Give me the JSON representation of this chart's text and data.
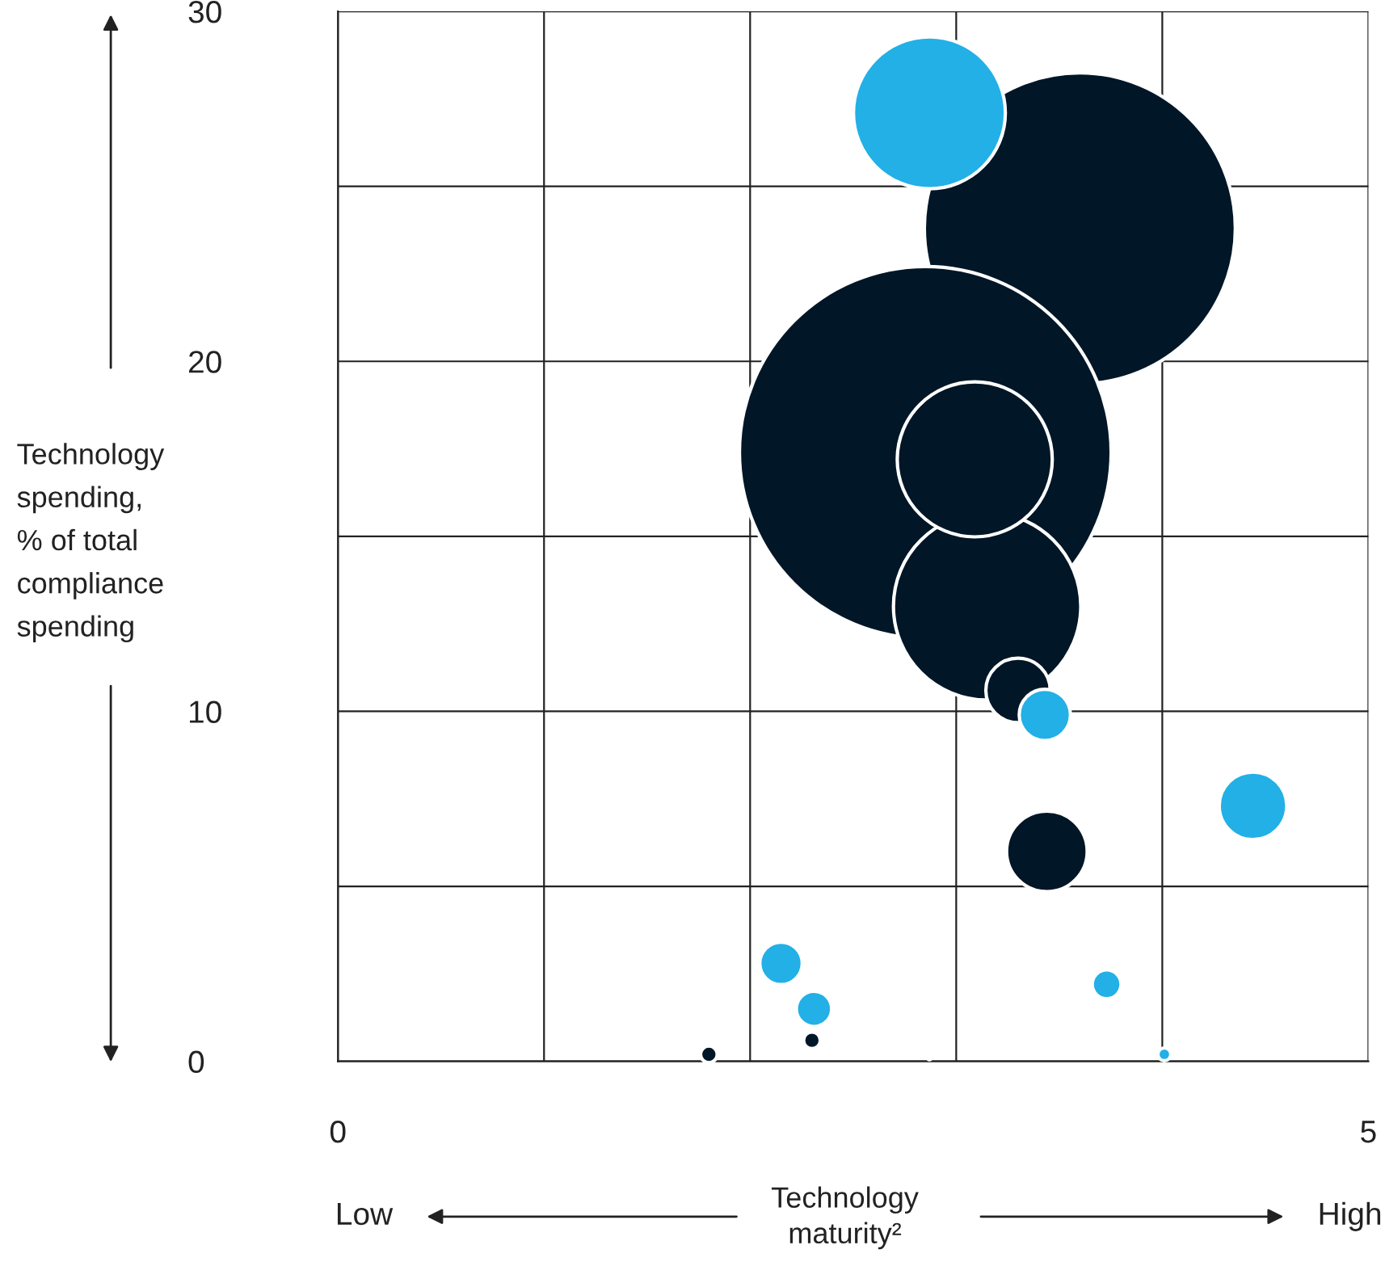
{
  "chart_data": {
    "type": "bubble",
    "ylabel": "Technology\nspending,\n% of total\ncompliance\nspending",
    "xlabel": "Technology\nmaturity²",
    "annotations": [
      "Low",
      "High"
    ],
    "xlim": [
      0,
      5
    ],
    "ylim": [
      0,
      30
    ],
    "xticks": [
      0,
      {
        "value": 1,
        "label": null
      },
      {
        "value": 2,
        "label": null
      },
      {
        "value": 3,
        "label": null
      },
      {
        "value": 4,
        "label": null
      },
      5
    ],
    "yticks": [
      0,
      {
        "value": 5,
        "label": null
      },
      10,
      {
        "value": 15,
        "label": null
      },
      20,
      {
        "value": 25,
        "label": null
      },
      30
    ],
    "grid": true,
    "legend": false,
    "series": [
      {
        "color": "#011627",
        "x": [
          3.6,
          2.85,
          3.15,
          3.09,
          3.3,
          3.44,
          1.8,
          2.3
        ],
        "values": [
          23.8,
          17.4,
          13.0,
          17.2,
          10.6,
          6.0,
          0.2,
          0.6
        ],
        "sizes": [
          0.7,
          1,
          0.254,
          0.174,
          0.03,
          0.047,
          0.002,
          0.002
        ]
      },
      {
        "color": "#22b0e6",
        "x": [
          2.87,
          3.43,
          4.44,
          2.15,
          2.31,
          3.73,
          4.01,
          2.87
        ],
        "values": [
          27.1,
          9.9,
          7.3,
          2.8,
          1.5,
          2.2,
          0.2,
          0.1
        ],
        "sizes": [
          0.167,
          0.019,
          0.033,
          0.013,
          0.009,
          0.006,
          0.0012,
          0.0001
        ]
      }
    ]
  }
}
